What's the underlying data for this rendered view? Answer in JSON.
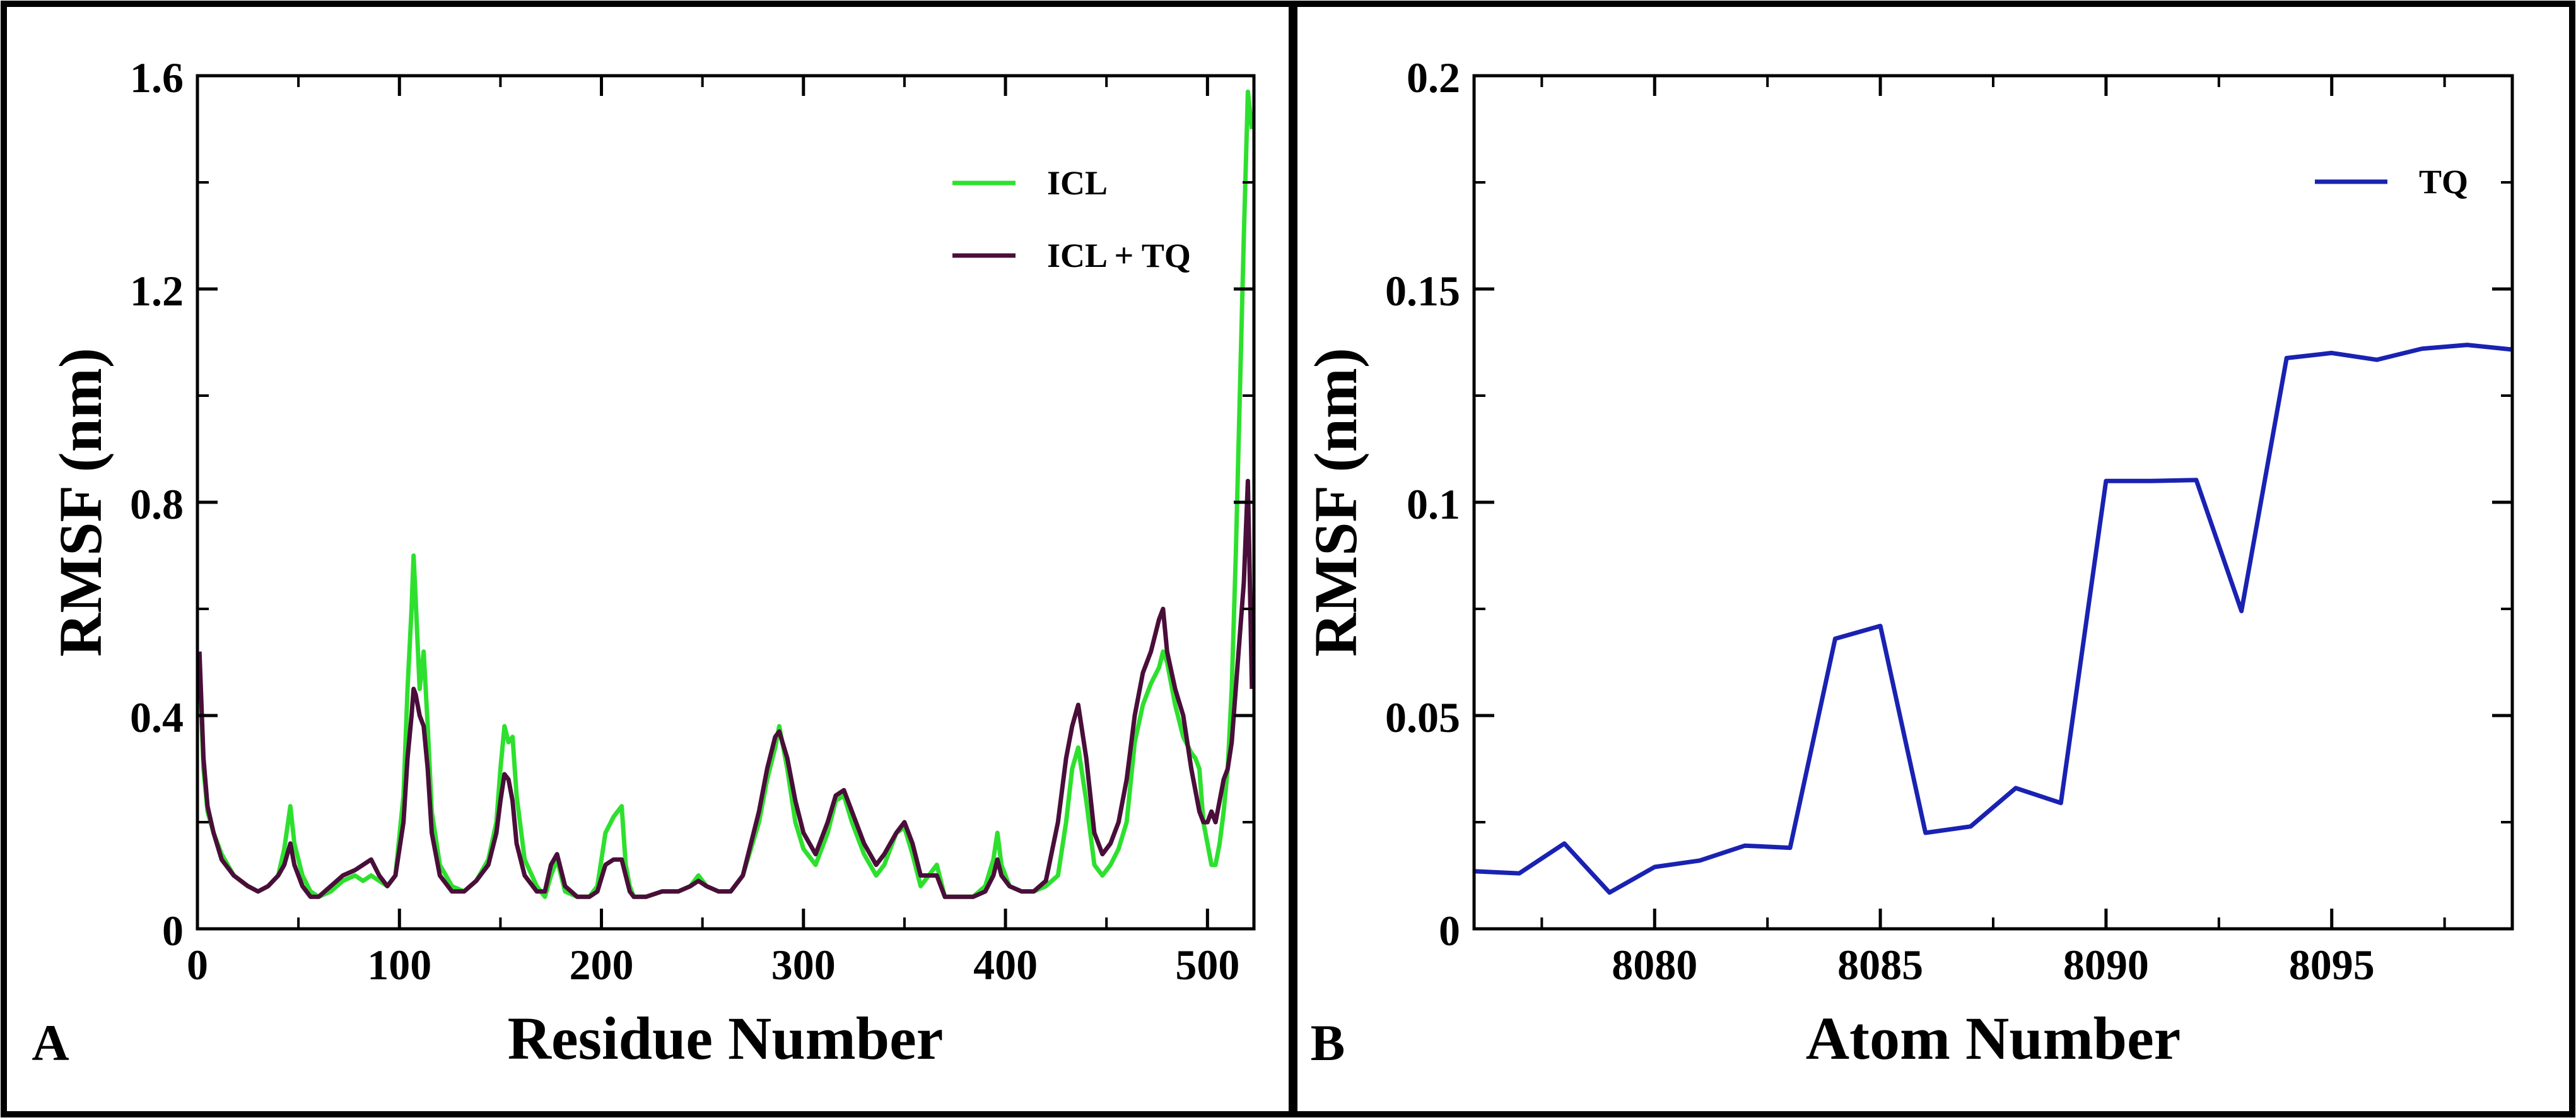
{
  "colors": {
    "icl": "#2EE02E",
    "icl_tq": "#4A0E3A",
    "tq": "#1A22B2",
    "axis": "#000000"
  },
  "chart_data": [
    {
      "panel_label": "A",
      "type": "line",
      "xlabel": "Residue Number",
      "ylabel": "RMSF (nm)",
      "xlim": [
        0,
        523
      ],
      "ylim": [
        0,
        1.6
      ],
      "xticks": [
        0,
        100,
        200,
        300,
        400,
        500
      ],
      "yticks": [
        0,
        0.4,
        0.8,
        1.2,
        1.6
      ],
      "xtick_labels": [
        "0",
        "100",
        "200",
        "300",
        "400",
        "500"
      ],
      "ytick_labels": [
        "0",
        "0.4",
        "0.8",
        "1.2",
        "1.6"
      ],
      "legend_position": "top-right",
      "series": [
        {
          "name": "ICL",
          "color_key": "icl",
          "x": [
            1,
            3,
            5,
            8,
            12,
            18,
            25,
            30,
            35,
            40,
            43,
            46,
            48,
            52,
            56,
            60,
            66,
            72,
            78,
            82,
            86,
            90,
            94,
            98,
            102,
            104,
            106,
            107,
            108,
            110,
            112,
            114,
            116,
            120,
            126,
            132,
            138,
            144,
            148,
            150,
            152,
            154,
            156,
            158,
            162,
            168,
            172,
            175,
            178,
            182,
            188,
            194,
            198,
            202,
            206,
            210,
            212,
            214,
            216,
            222,
            230,
            238,
            244,
            248,
            252,
            258,
            264,
            270,
            274,
            278,
            282,
            286,
            288,
            292,
            296,
            300,
            306,
            312,
            316,
            320,
            324,
            330,
            336,
            340,
            346,
            350,
            354,
            358,
            362,
            366,
            370,
            376,
            384,
            390,
            394,
            396,
            398,
            402,
            408,
            414,
            420,
            426,
            430,
            433,
            436,
            440,
            444,
            448,
            452,
            456,
            460,
            464,
            468,
            472,
            476,
            478,
            480,
            484,
            488,
            492,
            494,
            496,
            498,
            500,
            502,
            504,
            506,
            508,
            510,
            512,
            514,
            516,
            518,
            520,
            522
          ],
          "values": [
            0.5,
            0.3,
            0.22,
            0.18,
            0.14,
            0.1,
            0.08,
            0.07,
            0.08,
            0.1,
            0.15,
            0.23,
            0.16,
            0.1,
            0.07,
            0.06,
            0.07,
            0.09,
            0.1,
            0.09,
            0.1,
            0.09,
            0.08,
            0.1,
            0.25,
            0.45,
            0.6,
            0.7,
            0.62,
            0.45,
            0.52,
            0.38,
            0.22,
            0.12,
            0.08,
            0.07,
            0.09,
            0.13,
            0.2,
            0.3,
            0.38,
            0.35,
            0.36,
            0.25,
            0.13,
            0.08,
            0.06,
            0.1,
            0.13,
            0.07,
            0.06,
            0.06,
            0.08,
            0.18,
            0.21,
            0.23,
            0.12,
            0.08,
            0.06,
            0.06,
            0.07,
            0.07,
            0.08,
            0.1,
            0.08,
            0.07,
            0.07,
            0.1,
            0.15,
            0.2,
            0.28,
            0.34,
            0.38,
            0.3,
            0.2,
            0.15,
            0.12,
            0.18,
            0.24,
            0.25,
            0.2,
            0.14,
            0.1,
            0.12,
            0.18,
            0.19,
            0.14,
            0.08,
            0.1,
            0.12,
            0.06,
            0.06,
            0.06,
            0.08,
            0.13,
            0.18,
            0.12,
            0.08,
            0.07,
            0.07,
            0.08,
            0.1,
            0.2,
            0.3,
            0.34,
            0.24,
            0.12,
            0.1,
            0.12,
            0.15,
            0.2,
            0.35,
            0.42,
            0.46,
            0.49,
            0.52,
            0.5,
            0.42,
            0.36,
            0.33,
            0.32,
            0.3,
            0.2,
            0.16,
            0.12,
            0.12,
            0.16,
            0.22,
            0.3,
            0.45,
            0.7,
            1.0,
            1.3,
            1.57,
            1.5
          ]
        },
        {
          "name": "ICL + TQ",
          "color_key": "icl_tq",
          "x": [
            1,
            3,
            5,
            8,
            12,
            18,
            25,
            30,
            35,
            40,
            43,
            46,
            48,
            52,
            56,
            60,
            66,
            72,
            78,
            82,
            86,
            90,
            94,
            98,
            102,
            104,
            106,
            107,
            108,
            110,
            112,
            114,
            116,
            120,
            126,
            132,
            138,
            144,
            148,
            150,
            152,
            154,
            156,
            158,
            162,
            168,
            172,
            175,
            178,
            182,
            188,
            194,
            198,
            202,
            206,
            210,
            212,
            214,
            216,
            222,
            230,
            238,
            244,
            248,
            252,
            258,
            264,
            270,
            274,
            278,
            282,
            286,
            288,
            292,
            296,
            300,
            306,
            312,
            316,
            320,
            324,
            330,
            336,
            340,
            346,
            350,
            354,
            358,
            362,
            366,
            370,
            376,
            384,
            390,
            394,
            396,
            398,
            402,
            408,
            414,
            420,
            426,
            430,
            433,
            436,
            440,
            444,
            448,
            452,
            456,
            460,
            464,
            468,
            472,
            476,
            478,
            480,
            484,
            488,
            492,
            494,
            496,
            498,
            500,
            502,
            504,
            506,
            508,
            510,
            512,
            514,
            516,
            518,
            520,
            522
          ],
          "values": [
            0.52,
            0.32,
            0.23,
            0.18,
            0.13,
            0.1,
            0.08,
            0.07,
            0.08,
            0.1,
            0.12,
            0.16,
            0.12,
            0.08,
            0.06,
            0.06,
            0.08,
            0.1,
            0.11,
            0.12,
            0.13,
            0.1,
            0.08,
            0.1,
            0.2,
            0.32,
            0.4,
            0.45,
            0.44,
            0.4,
            0.38,
            0.3,
            0.18,
            0.1,
            0.07,
            0.07,
            0.09,
            0.12,
            0.18,
            0.24,
            0.29,
            0.28,
            0.24,
            0.16,
            0.1,
            0.07,
            0.07,
            0.12,
            0.14,
            0.08,
            0.06,
            0.06,
            0.07,
            0.12,
            0.13,
            0.13,
            0.1,
            0.07,
            0.06,
            0.06,
            0.07,
            0.07,
            0.08,
            0.09,
            0.08,
            0.07,
            0.07,
            0.1,
            0.16,
            0.22,
            0.3,
            0.36,
            0.37,
            0.32,
            0.24,
            0.18,
            0.14,
            0.2,
            0.25,
            0.26,
            0.22,
            0.16,
            0.12,
            0.14,
            0.18,
            0.2,
            0.16,
            0.1,
            0.1,
            0.1,
            0.06,
            0.06,
            0.06,
            0.07,
            0.1,
            0.13,
            0.1,
            0.08,
            0.07,
            0.07,
            0.09,
            0.2,
            0.32,
            0.38,
            0.42,
            0.32,
            0.18,
            0.14,
            0.16,
            0.2,
            0.28,
            0.4,
            0.48,
            0.52,
            0.58,
            0.6,
            0.52,
            0.45,
            0.4,
            0.3,
            0.26,
            0.22,
            0.2,
            0.2,
            0.22,
            0.2,
            0.24,
            0.28,
            0.3,
            0.35,
            0.45,
            0.55,
            0.65,
            0.84,
            0.45
          ]
        }
      ]
    },
    {
      "panel_label": "B",
      "type": "line",
      "xlabel": "Atom Number",
      "ylabel": "RMSF (nm)",
      "xlim": [
        8076,
        8099
      ],
      "ylim": [
        0,
        0.2
      ],
      "xticks": [
        8080,
        8085,
        8090,
        8095
      ],
      "yticks": [
        0,
        0.05,
        0.1,
        0.15,
        0.2
      ],
      "xtick_labels": [
        "8080",
        "8085",
        "8090",
        "8095"
      ],
      "ytick_labels": [
        "0",
        "0.05",
        "0.1",
        "0.15",
        "0.2"
      ],
      "legend_position": "top-right",
      "series": [
        {
          "name": "TQ",
          "color_key": "tq",
          "x": [
            8076,
            8077,
            8078,
            8079,
            8080,
            8081,
            8082,
            8083,
            8084,
            8085,
            8086,
            8087,
            8088,
            8089,
            8090,
            8091,
            8092,
            8093,
            8094,
            8095,
            8096,
            8097,
            8098,
            8099
          ],
          "values": [
            0.0135,
            0.013,
            0.02,
            0.0085,
            0.0145,
            0.016,
            0.0195,
            0.019,
            0.068,
            0.071,
            0.0225,
            0.024,
            0.033,
            0.0295,
            0.105,
            0.105,
            0.1052,
            0.0745,
            0.1338,
            0.135,
            0.1334,
            0.136,
            0.1369,
            0.1358
          ]
        }
      ]
    }
  ]
}
